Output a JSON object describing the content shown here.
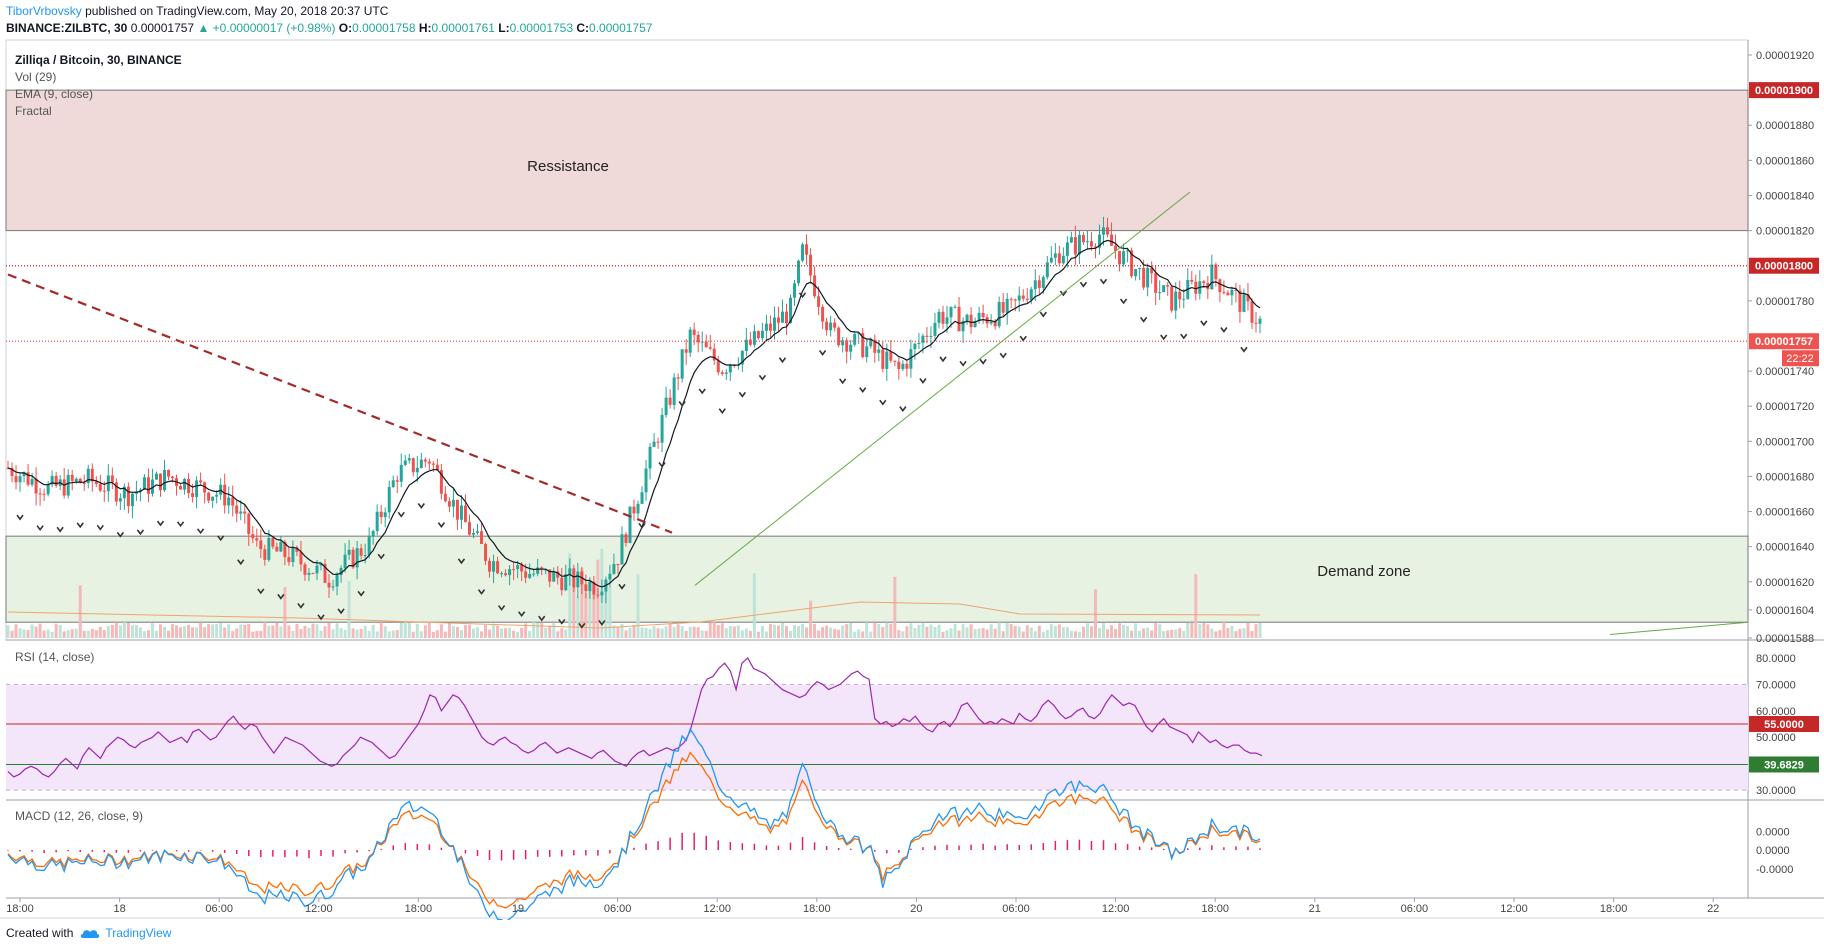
{
  "header": {
    "user": "TiborVrbovsky",
    "published_text": " published on TradingView.com, May 20, 2018 20:37 UTC",
    "symbol": "BINANCE:ZILBTC, 30",
    "open_price": "0.00001757",
    "change": "+0.00000017 (+0.98%)",
    "o_label": "O:",
    "o": "0.00001758",
    "h_label": "H:",
    "h": "0.00001761",
    "l_label": "L:",
    "l": "0.00001753",
    "c_label": "C:",
    "c": "0.00001757"
  },
  "legend": {
    "title": "Zilliqa / Bitcoin, 30, BINANCE",
    "vol": "Vol (29)",
    "ema": "EMA (9, close)",
    "fractal": "Fractal",
    "rsi": "RSI (14, close)",
    "macd": "MACD (12, 26, close, 9)"
  },
  "annotations": {
    "resistance": "Ressistance",
    "demand": "Demand zone"
  },
  "footer": {
    "created_with": "Created with",
    "brand": "TradingView"
  },
  "colors": {
    "up": "#26a69a",
    "down": "#ef5350",
    "resistance_zone": "#efd9d9",
    "demand_zone": "#e7f2e3",
    "rsi_band": "#f3e5fa",
    "rsi_line": "#9c27b0",
    "macd_line": "#2196f3",
    "signal_line": "#ff6d00",
    "hist": "#e91e63",
    "ema": "#131722",
    "price_tag": "#c62828",
    "rsi_tag": "#2e7d32"
  },
  "chart_data": [
    {
      "type": "candlestick",
      "ylim": [
        1.588e-05,
        1.92e-05
      ],
      "y_ticks": [
        "0.00001920",
        "0.00001880",
        "0.00001860",
        "0.00001840",
        "0.00001820",
        "0.00001780",
        "0.00001740",
        "0.00001720",
        "0.00001700",
        "0.00001680",
        "0.00001660",
        "0.00001640",
        "0.00001620",
        "0.00001604",
        "0.00001588"
      ],
      "y_tick_values": [
        1.92e-05,
        1.88e-05,
        1.86e-05,
        1.84e-05,
        1.82e-05,
        1.78e-05,
        1.74e-05,
        1.72e-05,
        1.7e-05,
        1.68e-05,
        1.66e-05,
        1.64e-05,
        1.62e-05,
        1.604e-05,
        1.588e-05
      ],
      "price_tags": [
        {
          "label": "0.00001900",
          "value": 1.9e-05
        },
        {
          "label": "0.00001800",
          "value": 1.8e-05
        },
        {
          "label": "0.00001757",
          "value": 1.757e-05
        }
      ],
      "countdown": "22:22",
      "resistance_zone": [
        1.82e-05,
        1.9e-05
      ],
      "demand_zone": [
        1.597e-05,
        1.646e-05
      ],
      "x_ticks": [
        "18:00",
        "18",
        "06:00",
        "12:00",
        "18:00",
        "19",
        "06:00",
        "12:00",
        "18:00",
        "20",
        "06:00",
        "12:00",
        "18:00",
        "21",
        "06:00",
        "12:00",
        "18:00",
        "22"
      ]
    },
    {
      "type": "line",
      "name": "RSI (14, close)",
      "ylim": [
        27,
        83
      ],
      "y_ticks": [
        "80.0000",
        "70.0000",
        "60.0000",
        "50.0000",
        "30.0000"
      ],
      "y_tick_values": [
        80,
        70,
        60,
        50,
        30
      ],
      "band": [
        30,
        70
      ],
      "tags": [
        {
          "label": "55.0000",
          "value": 55
        },
        {
          "label": "39.6829",
          "value": 39.6829
        }
      ],
      "values": [
        37,
        35,
        36,
        38,
        39,
        38,
        36,
        35,
        37,
        40,
        42,
        40,
        38,
        43,
        46,
        44,
        42,
        46,
        48,
        50,
        49,
        47,
        46,
        48,
        49,
        50,
        52,
        50,
        48,
        49,
        50,
        48,
        52,
        53,
        51,
        49,
        50,
        53,
        56,
        58,
        55,
        53,
        55,
        54,
        50,
        47,
        44,
        47,
        50,
        49,
        48,
        47,
        45,
        43,
        41,
        40,
        39,
        40,
        43,
        45,
        47,
        50,
        49,
        48,
        46,
        44,
        42,
        43,
        46,
        49,
        52,
        55,
        60,
        66,
        65,
        60,
        63,
        66,
        65,
        62,
        58,
        54,
        50,
        48,
        47,
        49,
        50,
        48,
        47,
        45,
        44,
        45,
        47,
        48,
        46,
        44,
        45,
        46,
        45,
        44,
        43,
        42,
        44,
        45,
        43,
        41,
        40,
        39,
        42,
        44,
        45,
        43,
        44,
        45,
        46,
        45,
        46,
        48,
        52,
        60,
        68,
        72,
        73,
        76,
        78,
        75,
        68,
        78,
        80,
        76,
        75,
        74,
        72,
        70,
        68,
        67,
        66,
        65,
        66,
        69,
        71,
        70,
        68,
        69,
        70,
        72,
        74,
        75,
        73,
        72,
        57,
        55,
        56,
        54,
        55,
        57,
        56,
        58,
        55,
        53,
        52,
        55,
        56,
        54,
        57,
        62,
        63,
        60,
        57,
        55,
        56,
        55,
        57,
        56,
        55,
        59,
        57,
        56,
        58,
        62,
        64,
        62,
        59,
        57,
        58,
        60,
        61,
        58,
        57,
        59,
        63,
        66,
        64,
        62,
        63,
        62,
        58,
        54,
        52,
        55,
        57,
        54,
        53,
        52,
        51,
        48,
        52,
        50,
        48,
        49,
        47,
        46,
        47,
        47,
        45,
        44,
        44,
        43
      ]
    },
    {
      "type": "line",
      "name": "MACD (12, 26, close, 9)",
      "ylim": [
        -1.2e-06,
        1.2e-06
      ],
      "y_ticks": [
        "0.0000",
        "0.0000",
        "-0.0000"
      ],
      "y_tick_values": [
        5e-07,
        0,
        -5e-07
      ]
    }
  ]
}
